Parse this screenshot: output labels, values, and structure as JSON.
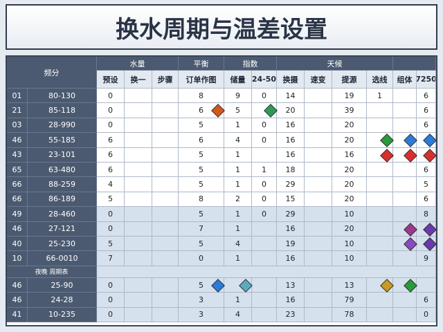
{
  "title": "换水周期与温差设置",
  "table": {
    "group_headers": [
      "水量",
      "平衡",
      "指数",
      "天候"
    ],
    "corner": "频分",
    "columns": [
      "预设",
      "换一",
      "步骤",
      "订单作图",
      "储量",
      "24-50",
      "换摄",
      "速变",
      "提源",
      "选线",
      "组体",
      "7250"
    ],
    "rows": [
      [
        "01",
        "80-130",
        "0",
        null,
        null,
        "8",
        "9",
        "0",
        "14",
        null,
        "19",
        "1",
        null,
        "6"
      ],
      [
        "21",
        "85-118",
        "0",
        null,
        null,
        "6",
        "5",
        null,
        "20",
        null,
        "39",
        null,
        null,
        "6"
      ],
      [
        "03",
        "28-990",
        "0",
        null,
        null,
        "5",
        "1",
        "0",
        "16",
        null,
        "20",
        null,
        null,
        "6"
      ],
      [
        "46",
        "55-185",
        "6",
        null,
        null,
        "6",
        "4",
        "0",
        "16",
        null,
        "20",
        null,
        null,
        null
      ],
      [
        "43",
        "23-101",
        "6",
        null,
        null,
        "5",
        "1",
        null,
        "16",
        null,
        "16",
        null,
        null,
        null
      ],
      [
        "65",
        "63-480",
        "6",
        null,
        null,
        "5",
        "1",
        "1",
        "18",
        null,
        "20",
        null,
        null,
        "6"
      ],
      [
        "66",
        "88-259",
        "4",
        null,
        null,
        "5",
        "1",
        "0",
        "29",
        null,
        "20",
        null,
        null,
        "5"
      ],
      [
        "66",
        "86-189",
        "5",
        null,
        null,
        "8",
        "2",
        "0",
        "15",
        null,
        "20",
        null,
        null,
        "6"
      ],
      [
        "49",
        "28-460",
        "0",
        null,
        null,
        "5",
        "1",
        "0",
        "29",
        null,
        "10",
        null,
        null,
        "8"
      ],
      [
        "46",
        "27-121",
        "0",
        null,
        null,
        "7",
        "1",
        null,
        "16",
        null,
        "20",
        null,
        null,
        null
      ],
      [
        "40",
        "25-230",
        "5",
        null,
        null,
        "5",
        "4",
        null,
        "19",
        null,
        "10",
        null,
        null,
        null
      ],
      [
        "10",
        "66-0010",
        "7",
        null,
        null,
        "0",
        "1",
        null,
        "16",
        null,
        "10",
        null,
        null,
        "9"
      ]
    ],
    "section": {
      "label": "夜晚 周期表",
      "rows": [
        [
          "46",
          "25-90",
          "0",
          null,
          null,
          "5",
          null,
          null,
          "13",
          null,
          "13",
          null,
          null,
          null
        ],
        [
          "46",
          "24-28",
          "0",
          null,
          null,
          "3",
          "1",
          null,
          "16",
          null,
          "79",
          null,
          null,
          "6"
        ],
        [
          "41",
          "10-235",
          "0",
          null,
          null,
          "3",
          "4",
          null,
          "23",
          null,
          "78",
          null,
          null,
          "0"
        ]
      ]
    }
  }
}
